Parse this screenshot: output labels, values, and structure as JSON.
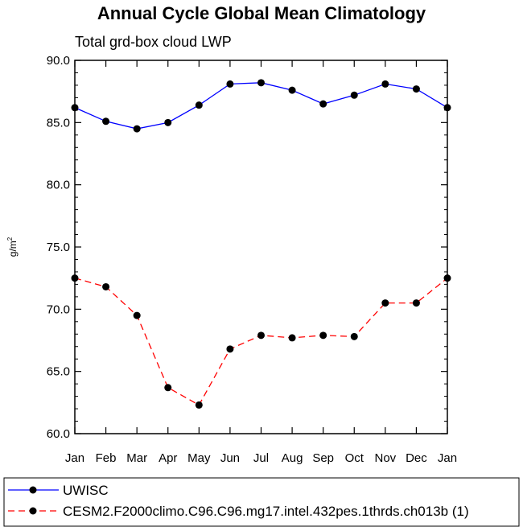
{
  "chart_data": {
    "type": "line",
    "title": "Annual Cycle Global Mean Climatology",
    "subtitle": "Total grd-box cloud LWP",
    "xlabel": "",
    "ylabel": "g/m",
    "ylabel_superscript": "2",
    "categories": [
      "Jan",
      "Feb",
      "Mar",
      "Apr",
      "May",
      "Jun",
      "Jul",
      "Aug",
      "Sep",
      "Oct",
      "Nov",
      "Dec",
      "Jan"
    ],
    "ylim": [
      60.0,
      90.0
    ],
    "yticks": [
      "60.0",
      "65.0",
      "70.0",
      "75.0",
      "80.0",
      "85.0",
      "90.0"
    ],
    "grid": false,
    "legend_position": "bottom",
    "series": [
      {
        "name": "UWISC",
        "color": "#0000ff",
        "style": "solid",
        "values": [
          86.2,
          85.1,
          84.5,
          85.0,
          86.4,
          88.1,
          88.2,
          87.6,
          86.5,
          87.2,
          88.1,
          87.7,
          86.2
        ]
      },
      {
        "name": "CESM2.F2000climo.C96.C96.mg17.intel.432pes.1thrds.ch013b (1)",
        "color": "#ff0000",
        "style": "dashed",
        "values": [
          72.5,
          71.8,
          69.5,
          63.7,
          62.3,
          66.8,
          67.9,
          67.7,
          67.9,
          67.8,
          70.5,
          70.5,
          72.5
        ]
      }
    ]
  }
}
